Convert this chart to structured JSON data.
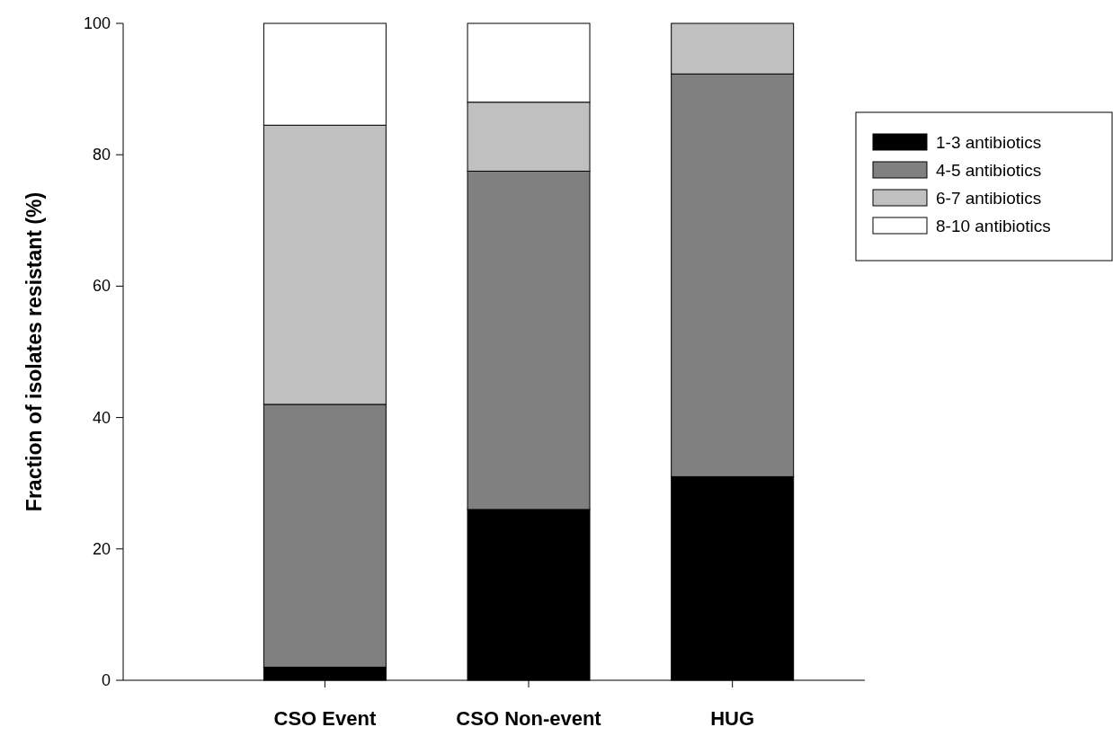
{
  "chart_data": {
    "type": "bar",
    "stacked": true,
    "ylabel": "Fraction of isolates resistant (%)",
    "categories": [
      "CSO Event",
      "CSO Non-event",
      "HUG"
    ],
    "series": [
      {
        "name": "1-3 antibiotics",
        "color": "#000000",
        "values": [
          2,
          26,
          31
        ]
      },
      {
        "name": "4-5 antibiotics",
        "color": "#808080",
        "values": [
          40,
          51.5,
          61.3
        ]
      },
      {
        "name": "6-7 antibiotics",
        "color": "#c0c0c0",
        "values": [
          42.5,
          10.5,
          7.7
        ]
      },
      {
        "name": "8-10 antibiotics",
        "color": "#ffffff",
        "values": [
          15.5,
          12,
          0
        ]
      }
    ],
    "ylim": [
      0,
      100
    ],
    "yticks": [
      0,
      20,
      40,
      60,
      80,
      100
    ],
    "grid": false,
    "legend": "top right"
  }
}
